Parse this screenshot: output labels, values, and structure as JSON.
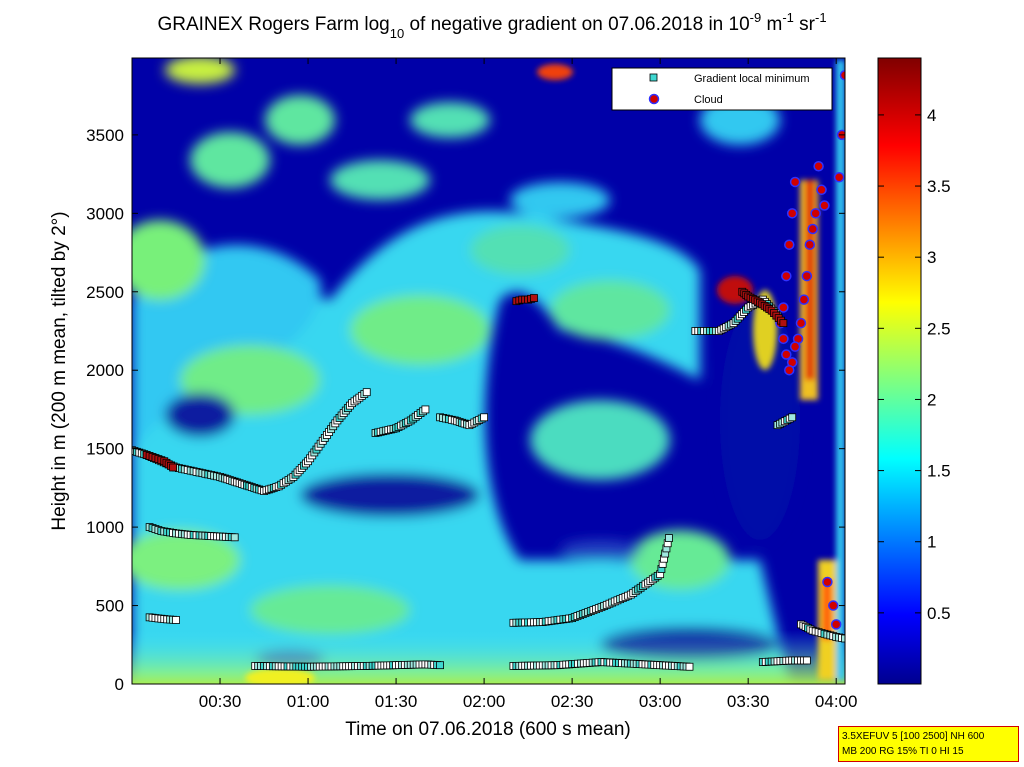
{
  "chart_data": {
    "type": "heatmap",
    "title": {
      "part1": "GRAINEX Rogers Farm log",
      "sub": "10",
      "part2": " of negative gradient on 07.06.2018 in 10",
      "sup1": "-9",
      "part3": " m",
      "sup2": "-1",
      "part4": " sr",
      "sup3": "-1"
    },
    "xlabel": "Time on 07.06.2018 (600 s mean)",
    "ylabel": "Height in m (200 m mean, tilted by 2°)",
    "x_range_min": [
      0,
      243
    ],
    "y_range_m": [
      0,
      3990
    ],
    "x_ticks": [
      {
        "min": 30,
        "label": "00:30"
      },
      {
        "min": 60,
        "label": "01:00"
      },
      {
        "min": 90,
        "label": "01:30"
      },
      {
        "min": 120,
        "label": "02:00"
      },
      {
        "min": 150,
        "label": "02:30"
      },
      {
        "min": 180,
        "label": "03:00"
      },
      {
        "min": 210,
        "label": "03:30"
      },
      {
        "min": 240,
        "label": "04:00"
      }
    ],
    "y_ticks": [
      0,
      500,
      1000,
      1500,
      2000,
      2500,
      3000,
      3500
    ],
    "colorbar": {
      "range": [
        0,
        4.4
      ],
      "ticks": [
        "0.5",
        "1",
        "1.5",
        "2",
        "2.5",
        "3",
        "3.5",
        "4"
      ],
      "tick_values": [
        0.5,
        1,
        1.5,
        2,
        2.5,
        3,
        3.5,
        4
      ],
      "colormap": "jet"
    },
    "legend": {
      "placement": "top-right",
      "entries": [
        {
          "label": "Gradient local minimum",
          "marker": "square",
          "color": "#3fd7d0"
        },
        {
          "label": "Cloud",
          "marker": "circle",
          "color": "#d00000",
          "edge": "#3030ff"
        }
      ]
    },
    "series": [
      {
        "name": "Gradient local minimum",
        "marker": "square",
        "segments": [
          {
            "t": [
              0,
              5,
              10,
              15,
              20,
              25,
              30,
              35,
              40,
              45,
              50,
              55,
              60,
              65,
              70,
              75,
              80
            ],
            "h": [
              1490,
              1460,
              1420,
              1380,
              1360,
              1340,
              1320,
              1290,
              1260,
              1230,
              1260,
              1320,
              1420,
              1550,
              1680,
              1790,
              1860
            ]
          },
          {
            "t": [
              6,
              10,
              15,
              20,
              25,
              30,
              35
            ],
            "h": [
              1000,
              975,
              960,
              950,
              945,
              940,
              935
            ]
          },
          {
            "t": [
              6,
              9,
              12,
              15
            ],
            "h": [
              425,
              418,
              412,
              408
            ]
          },
          {
            "t": [
              42,
              60,
              80,
              100,
              105
            ],
            "h": [
              115,
              110,
              115,
              125,
              120
            ]
          },
          {
            "t": [
              83,
              90,
              95,
              100
            ],
            "h": [
              1600,
              1630,
              1680,
              1750
            ]
          },
          {
            "t": [
              105,
              110,
              115,
              120
            ],
            "h": [
              1700,
              1680,
              1650,
              1700
            ]
          },
          {
            "t": [
              130,
              140,
              150,
              160,
              170,
              180,
              183
            ],
            "h": [
              390,
              395,
              420,
              490,
              570,
              700,
              930
            ]
          },
          {
            "t": [
              130,
              145,
              160,
              175,
              190
            ],
            "h": [
              115,
              120,
              140,
              125,
              110
            ]
          },
          {
            "t": [
              192,
              200,
              205,
              210,
              215,
              220
            ],
            "h": [
              2250,
              2250,
              2300,
              2400,
              2450,
              2350
            ]
          },
          {
            "t": [
              215,
              220,
              225,
              230
            ],
            "h": [
              140,
              145,
              150,
              150
            ]
          },
          {
            "t": [
              228,
              232,
              236,
              240,
              243
            ],
            "h": [
              380,
              340,
              320,
              300,
              290
            ]
          },
          {
            "t": [
              220,
              225
            ],
            "h": [
              1650,
              1700
            ]
          }
        ]
      },
      {
        "name": "Cloud",
        "marker": "circle",
        "segments": [
          {
            "t": [
              240,
              239,
              237,
              236,
              235,
              234,
              233,
              232,
              231,
              230,
              229,
              228,
              227,
              226,
              225,
              224,
              223,
              222,
              221,
              222,
              223,
              224,
              225,
              226
            ],
            "h": [
              380,
              500,
              650,
              3050,
              3150,
              3300,
              3000,
              2900,
              2800,
              2600,
              2450,
              2300,
              2200,
              2150,
              2050,
              2000,
              2100,
              2200,
              2300,
              2400,
              2600,
              2800,
              3000,
              3200
            ]
          },
          {
            "t": [
              241,
              242,
              243
            ],
            "h": [
              3230,
              3500,
              3880
            ]
          }
        ]
      },
      {
        "name": "Gradient maxima (red)",
        "marker": "square",
        "segments": [
          {
            "t": [
              5,
              8,
              11,
              14
            ],
            "h": [
              1460,
              1440,
              1420,
              1380
            ]
          },
          {
            "t": [
              131,
              133,
              135,
              137
            ],
            "h": [
              2440,
              2450,
              2450,
              2460
            ]
          },
          {
            "t": [
              208,
              210,
              214,
              218,
              222
            ],
            "h": [
              2500,
              2470,
              2430,
              2380,
              2300
            ]
          }
        ]
      }
    ]
  },
  "info_box": {
    "line1": "3.5XEFUV 5 [100 2500] NH 600",
    "line2": "MB 200 RG 15% TI 0 HI 15"
  }
}
